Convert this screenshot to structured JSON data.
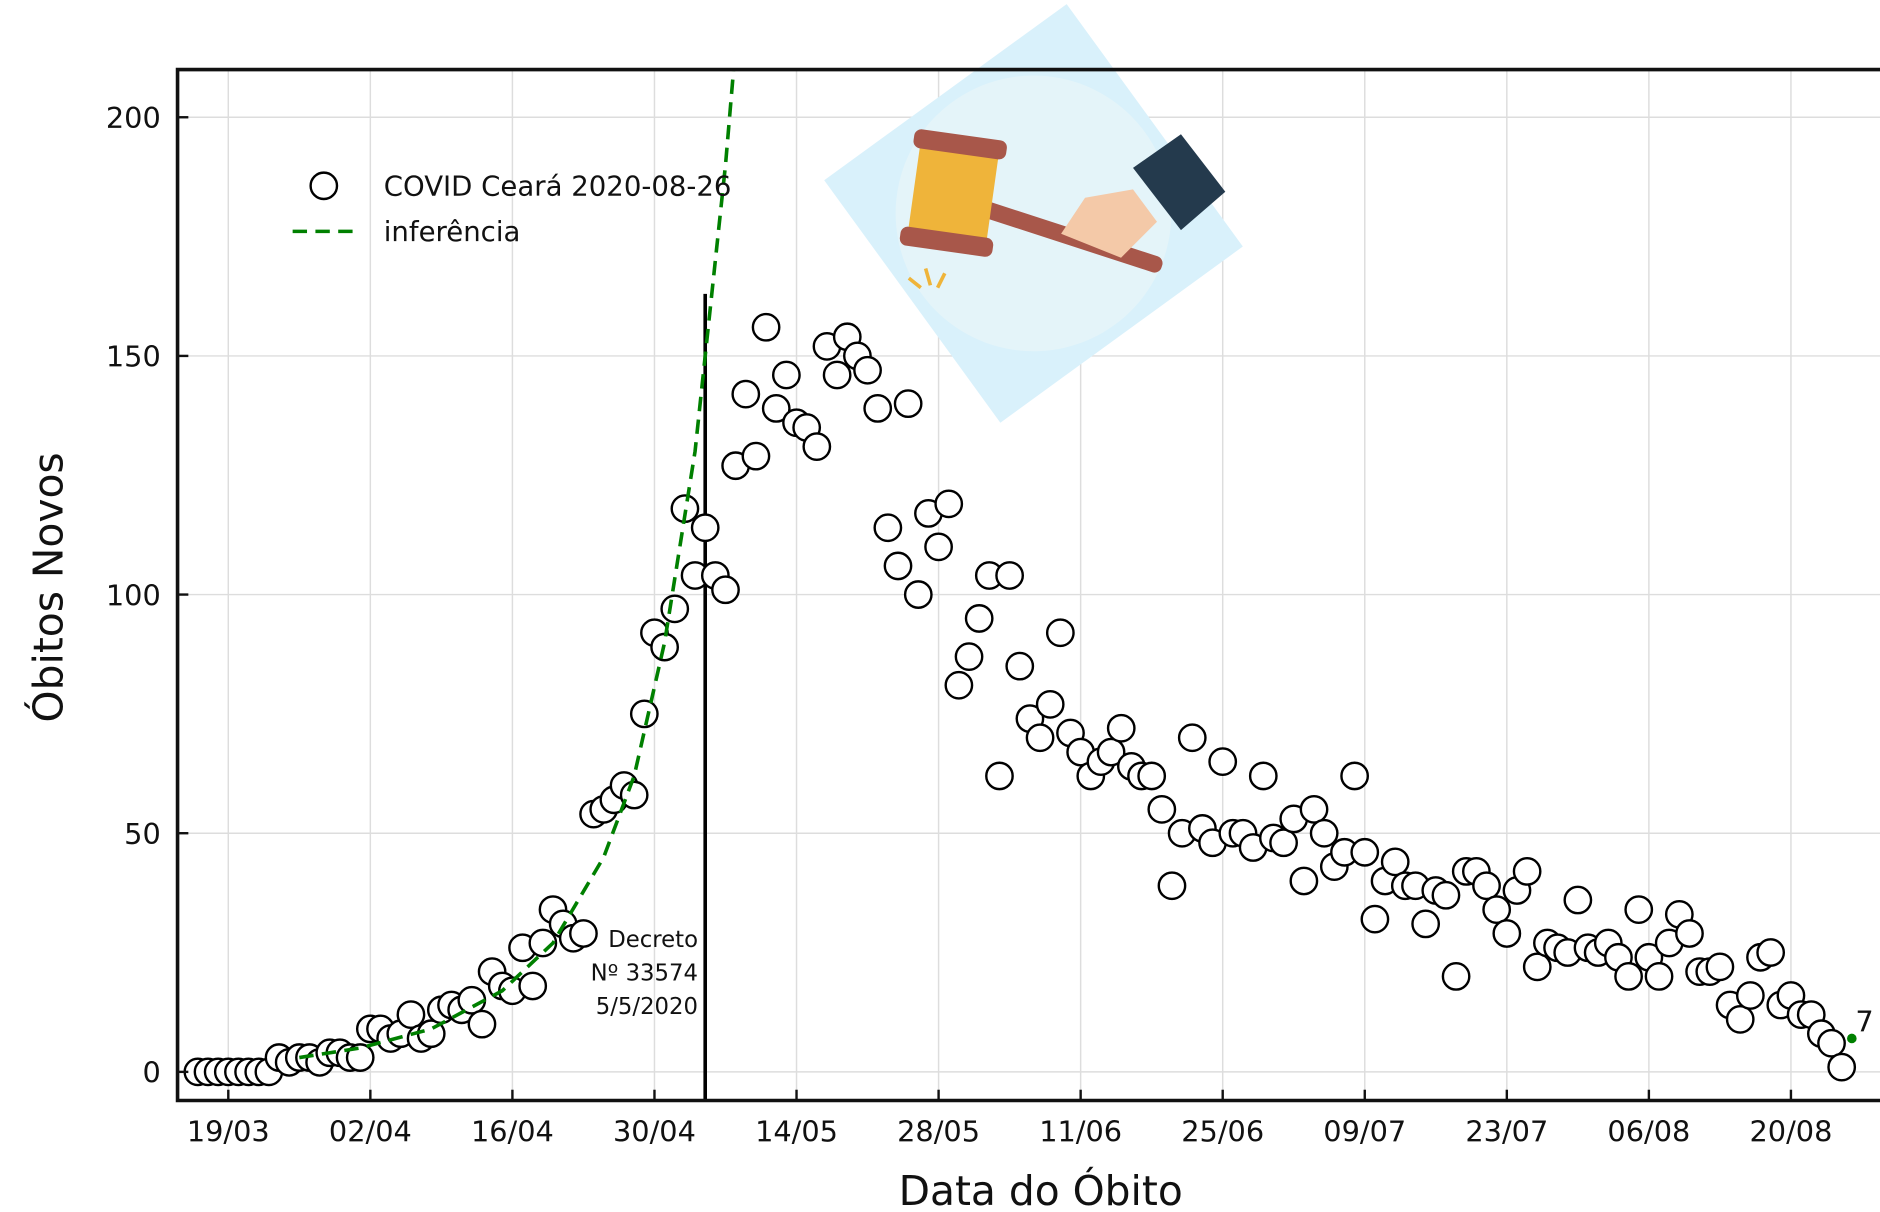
{
  "chart_data": {
    "type": "scatter",
    "xlabel": "Data do Óbito",
    "ylabel": "Óbitos Novos",
    "xlim": [
      "14/03",
      "29/08"
    ],
    "ylim": [
      -6,
      210
    ],
    "xticks": [
      "19/03",
      "02/04",
      "16/04",
      "30/04",
      "14/05",
      "28/05",
      "11/06",
      "25/06",
      "09/07",
      "23/07",
      "06/08",
      "20/08"
    ],
    "yticks": [
      0,
      50,
      100,
      150,
      200
    ],
    "grid": true,
    "legend": "upper left",
    "series": [
      {
        "name": "COVID Ceará 2020-08-26",
        "color": "#000000",
        "marker": "circle",
        "x": [
          "16/03",
          "17/03",
          "18/03",
          "19/03",
          "20/03",
          "21/03",
          "22/03",
          "23/03",
          "24/03",
          "25/03",
          "26/03",
          "27/03",
          "28/03",
          "29/03",
          "30/03",
          "31/03",
          "01/04",
          "02/04",
          "03/04",
          "04/04",
          "05/04",
          "06/04",
          "07/04",
          "08/04",
          "09/04",
          "10/04",
          "11/04",
          "12/04",
          "13/04",
          "14/04",
          "15/04",
          "16/04",
          "17/04",
          "18/04",
          "19/04",
          "20/04",
          "21/04",
          "22/04",
          "23/04",
          "24/04",
          "25/04",
          "26/04",
          "27/04",
          "28/04",
          "29/04",
          "30/04",
          "01/05",
          "02/05",
          "03/05",
          "04/05",
          "05/05",
          "06/05",
          "07/05",
          "08/05",
          "09/05",
          "10/05",
          "11/05",
          "12/05",
          "13/05",
          "14/05",
          "15/05",
          "16/05",
          "17/05",
          "18/05",
          "19/05",
          "20/05",
          "21/05",
          "22/05",
          "23/05",
          "24/05",
          "25/05",
          "26/05",
          "27/05",
          "28/05",
          "29/05",
          "30/05",
          "31/05",
          "01/06",
          "02/06",
          "03/06",
          "04/06",
          "05/06",
          "06/06",
          "07/06",
          "08/06",
          "09/06",
          "10/06",
          "11/06",
          "12/06",
          "13/06",
          "14/06",
          "15/06",
          "16/06",
          "17/06",
          "18/06",
          "19/06",
          "20/06",
          "21/06",
          "22/06",
          "23/06",
          "24/06",
          "25/06",
          "26/06",
          "27/06",
          "28/06",
          "29/06",
          "30/06",
          "01/07",
          "02/07",
          "03/07",
          "04/07",
          "05/07",
          "06/07",
          "07/07",
          "08/07",
          "09/07",
          "10/07",
          "11/07",
          "12/07",
          "13/07",
          "14/07",
          "15/07",
          "16/07",
          "17/07",
          "18/07",
          "19/07",
          "20/07",
          "21/07",
          "22/07",
          "23/07",
          "24/07",
          "25/07",
          "26/07",
          "27/07",
          "28/07",
          "29/07",
          "30/07",
          "31/07",
          "01/08",
          "02/08",
          "03/08",
          "04/08",
          "05/08",
          "06/08",
          "07/08",
          "08/08",
          "09/08",
          "10/08",
          "11/08",
          "12/08",
          "13/08",
          "14/08",
          "15/08",
          "16/08",
          "17/08",
          "18/08",
          "19/08",
          "20/08",
          "21/08",
          "22/08",
          "23/08",
          "24/08",
          "25/08"
        ],
        "values": [
          0,
          0,
          0,
          0,
          0,
          0,
          0,
          0,
          3,
          2,
          3,
          3,
          2,
          4,
          4,
          3,
          3,
          9,
          9,
          7,
          8,
          12,
          7,
          8,
          13,
          14,
          13,
          15,
          10,
          21,
          18,
          17,
          26,
          18,
          27,
          34,
          31,
          28,
          29,
          54,
          55,
          57,
          60,
          58,
          75,
          92,
          89,
          97,
          118,
          104,
          114,
          104,
          101,
          127,
          142,
          129,
          156,
          139,
          146,
          136,
          135,
          131,
          152,
          146,
          154,
          150,
          147,
          139,
          114,
          106,
          140,
          100,
          117,
          110,
          119,
          81,
          87,
          95,
          104,
          62,
          104,
          85,
          74,
          70,
          77,
          92,
          71,
          67,
          62,
          65,
          67,
          72,
          64,
          62,
          62,
          55,
          39,
          50,
          70,
          51,
          48,
          65,
          50,
          50,
          47,
          62,
          49,
          48,
          53,
          40,
          55,
          50,
          43,
          46,
          62,
          46,
          32,
          40,
          44,
          39,
          39,
          31,
          38,
          37,
          20,
          42,
          42,
          39,
          34,
          29,
          38,
          42,
          22,
          27,
          26,
          25,
          36,
          26,
          25,
          27,
          24,
          20,
          34,
          24,
          20,
          27,
          33,
          29,
          21,
          21,
          22,
          14,
          11,
          16,
          24,
          25,
          14,
          16,
          12,
          12,
          8,
          6,
          1
        ]
      },
      {
        "name": "inferência",
        "color": "#008000",
        "style": "dashed",
        "x": [
          "26/03",
          "01/04",
          "08/04",
          "15/04",
          "20/04",
          "25/04",
          "28/04",
          "01/05",
          "04/05",
          "07/05",
          "08/05",
          "26/08"
        ],
        "values": [
          3,
          5,
          9,
          17,
          27,
          45,
          62,
          90,
          130,
          190,
          215,
          null
        ]
      },
      {
        "name": null
      }
    ],
    "point_label": {
      "x": "26/08",
      "value": 7
    },
    "vline": {
      "x": "05/05",
      "top": 163,
      "color": "#000000"
    },
    "annotation": [
      "Decreto",
      "Nº 33574",
      "5/5/2020"
    ]
  }
}
